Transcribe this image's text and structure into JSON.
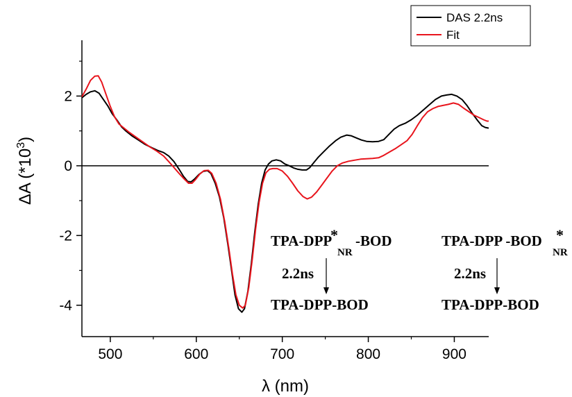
{
  "chart_data": {
    "type": "line",
    "xlabel": "λ (nm)",
    "ylabel_base": "ΔA (*10",
    "ylabel_exp": "3",
    "ylabel_close": ")",
    "xlim": [
      467,
      940
    ],
    "ylim": [
      -4.9,
      3.6
    ],
    "xticks": [
      500,
      600,
      700,
      800,
      900
    ],
    "yticks": [
      -4,
      -2,
      0,
      2
    ],
    "zero_line": true,
    "legend_position": "top-right",
    "series": [
      {
        "name": "DAS 2.2ns",
        "color": "#000000",
        "points": [
          [
            467,
            1.95
          ],
          [
            472,
            2.05
          ],
          [
            477,
            2.12
          ],
          [
            482,
            2.15
          ],
          [
            487,
            2.08
          ],
          [
            492,
            1.9
          ],
          [
            497,
            1.72
          ],
          [
            502,
            1.5
          ],
          [
            508,
            1.3
          ],
          [
            513,
            1.12
          ],
          [
            518,
            1.0
          ],
          [
            525,
            0.86
          ],
          [
            532,
            0.75
          ],
          [
            540,
            0.62
          ],
          [
            548,
            0.52
          ],
          [
            555,
            0.44
          ],
          [
            562,
            0.38
          ],
          [
            568,
            0.28
          ],
          [
            574,
            0.12
          ],
          [
            580,
            -0.1
          ],
          [
            585,
            -0.3
          ],
          [
            590,
            -0.45
          ],
          [
            594,
            -0.46
          ],
          [
            598,
            -0.38
          ],
          [
            603,
            -0.25
          ],
          [
            608,
            -0.16
          ],
          [
            613,
            -0.14
          ],
          [
            617,
            -0.22
          ],
          [
            622,
            -0.5
          ],
          [
            627,
            -0.9
          ],
          [
            632,
            -1.5
          ],
          [
            637,
            -2.3
          ],
          [
            641,
            -3.0
          ],
          [
            645,
            -3.7
          ],
          [
            649,
            -4.1
          ],
          [
            653,
            -4.2
          ],
          [
            656,
            -4.1
          ],
          [
            660,
            -3.6
          ],
          [
            664,
            -2.8
          ],
          [
            668,
            -1.9
          ],
          [
            672,
            -1.1
          ],
          [
            676,
            -0.5
          ],
          [
            680,
            -0.12
          ],
          [
            684,
            0.05
          ],
          [
            688,
            0.14
          ],
          [
            693,
            0.17
          ],
          [
            698,
            0.14
          ],
          [
            703,
            0.05
          ],
          [
            708,
            0.0
          ],
          [
            713,
            -0.06
          ],
          [
            718,
            -0.1
          ],
          [
            723,
            -0.12
          ],
          [
            728,
            -0.12
          ],
          [
            732,
            -0.05
          ],
          [
            737,
            0.1
          ],
          [
            742,
            0.25
          ],
          [
            748,
            0.4
          ],
          [
            755,
            0.57
          ],
          [
            762,
            0.72
          ],
          [
            768,
            0.82
          ],
          [
            775,
            0.88
          ],
          [
            780,
            0.86
          ],
          [
            786,
            0.8
          ],
          [
            792,
            0.74
          ],
          [
            798,
            0.7
          ],
          [
            805,
            0.69
          ],
          [
            812,
            0.7
          ],
          [
            818,
            0.75
          ],
          [
            824,
            0.9
          ],
          [
            830,
            1.05
          ],
          [
            836,
            1.15
          ],
          [
            843,
            1.22
          ],
          [
            850,
            1.32
          ],
          [
            857,
            1.45
          ],
          [
            864,
            1.6
          ],
          [
            871,
            1.75
          ],
          [
            878,
            1.9
          ],
          [
            885,
            2.0
          ],
          [
            891,
            2.03
          ],
          [
            897,
            2.05
          ],
          [
            903,
            2.0
          ],
          [
            909,
            1.9
          ],
          [
            915,
            1.72
          ],
          [
            921,
            1.5
          ],
          [
            927,
            1.3
          ],
          [
            932,
            1.15
          ],
          [
            936,
            1.1
          ],
          [
            940,
            1.08
          ]
        ]
      },
      {
        "name": "Fit",
        "color": "#e8141c",
        "points": [
          [
            467,
            1.98
          ],
          [
            472,
            2.2
          ],
          [
            477,
            2.45
          ],
          [
            482,
            2.57
          ],
          [
            486,
            2.58
          ],
          [
            490,
            2.4
          ],
          [
            495,
            2.05
          ],
          [
            500,
            1.7
          ],
          [
            505,
            1.4
          ],
          [
            510,
            1.2
          ],
          [
            516,
            1.08
          ],
          [
            522,
            0.96
          ],
          [
            530,
            0.82
          ],
          [
            538,
            0.68
          ],
          [
            546,
            0.54
          ],
          [
            554,
            0.42
          ],
          [
            562,
            0.28
          ],
          [
            568,
            0.12
          ],
          [
            574,
            -0.05
          ],
          [
            580,
            -0.22
          ],
          [
            586,
            -0.38
          ],
          [
            591,
            -0.5
          ],
          [
            595,
            -0.5
          ],
          [
            599,
            -0.4
          ],
          [
            604,
            -0.24
          ],
          [
            609,
            -0.14
          ],
          [
            614,
            -0.13
          ],
          [
            618,
            -0.22
          ],
          [
            623,
            -0.5
          ],
          [
            628,
            -0.95
          ],
          [
            633,
            -1.6
          ],
          [
            638,
            -2.4
          ],
          [
            642,
            -3.1
          ],
          [
            646,
            -3.7
          ],
          [
            650,
            -4.0
          ],
          [
            654,
            -4.08
          ],
          [
            657,
            -4.0
          ],
          [
            661,
            -3.5
          ],
          [
            665,
            -2.7
          ],
          [
            669,
            -1.8
          ],
          [
            673,
            -1.05
          ],
          [
            677,
            -0.5
          ],
          [
            681,
            -0.2
          ],
          [
            685,
            -0.1
          ],
          [
            689,
            -0.08
          ],
          [
            694,
            -0.08
          ],
          [
            700,
            -0.15
          ],
          [
            706,
            -0.3
          ],
          [
            712,
            -0.5
          ],
          [
            718,
            -0.72
          ],
          [
            724,
            -0.88
          ],
          [
            729,
            -0.95
          ],
          [
            734,
            -0.9
          ],
          [
            740,
            -0.75
          ],
          [
            746,
            -0.55
          ],
          [
            752,
            -0.35
          ],
          [
            758,
            -0.15
          ],
          [
            764,
            0.0
          ],
          [
            770,
            0.08
          ],
          [
            777,
            0.13
          ],
          [
            784,
            0.16
          ],
          [
            791,
            0.19
          ],
          [
            798,
            0.2
          ],
          [
            805,
            0.21
          ],
          [
            812,
            0.23
          ],
          [
            818,
            0.3
          ],
          [
            825,
            0.4
          ],
          [
            832,
            0.5
          ],
          [
            838,
            0.6
          ],
          [
            845,
            0.72
          ],
          [
            851,
            0.9
          ],
          [
            857,
            1.15
          ],
          [
            863,
            1.38
          ],
          [
            869,
            1.55
          ],
          [
            875,
            1.64
          ],
          [
            881,
            1.7
          ],
          [
            887,
            1.73
          ],
          [
            893,
            1.76
          ],
          [
            899,
            1.8
          ],
          [
            905,
            1.76
          ],
          [
            911,
            1.65
          ],
          [
            917,
            1.55
          ],
          [
            923,
            1.45
          ],
          [
            929,
            1.38
          ],
          [
            934,
            1.32
          ],
          [
            938,
            1.28
          ],
          [
            940,
            1.28
          ]
        ]
      }
    ],
    "annotations": [
      {
        "top_main": "TPA-DPP",
        "top_star": "*",
        "top_sub": "NR",
        "top_tail": "-BOD",
        "time": "2.2ns",
        "bottom": "TPA-DPP-BOD"
      },
      {
        "top_main": "TPA-DPP -BOD",
        "top_star": "*",
        "top_sub": "NR",
        "top_tail": "",
        "time": "2.2ns",
        "bottom": "TPA-DPP-BOD"
      }
    ]
  }
}
